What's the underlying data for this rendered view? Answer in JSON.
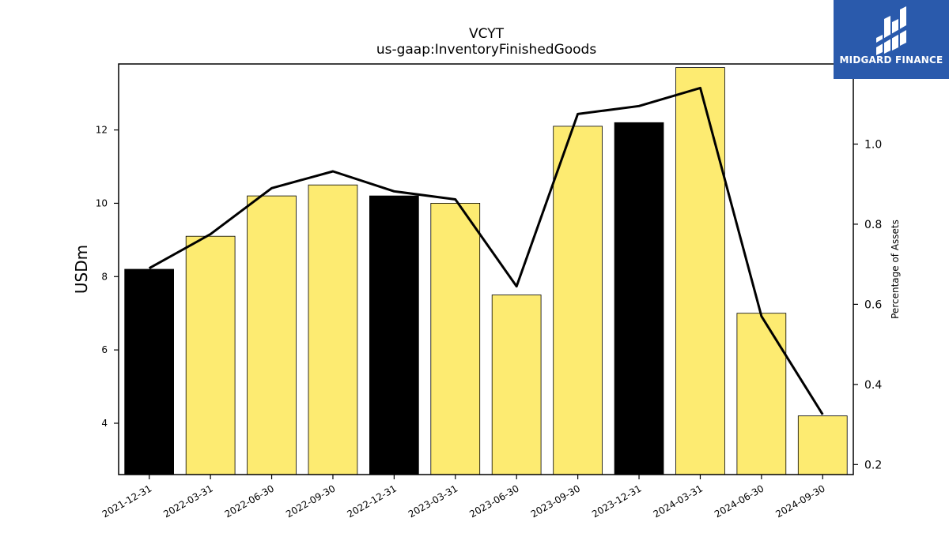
{
  "chart_data": {
    "type": "bar",
    "title": "VCYT",
    "subtitle": "us-gaap:InventoryFinishedGoods",
    "ylabel": "USDm",
    "y2label": "Percentage of Assets",
    "categories": [
      "2021-12-31",
      "2022-03-31",
      "2022-06-30",
      "2022-09-30",
      "2022-12-31",
      "2023-03-31",
      "2023-06-30",
      "2023-09-30",
      "2023-12-31",
      "2024-03-31",
      "2024-06-30",
      "2024-09-30"
    ],
    "values": [
      8.2,
      9.1,
      10.2,
      10.5,
      10.2,
      10.0,
      7.5,
      12.1,
      12.2,
      13.7,
      7.0,
      4.2
    ],
    "bar_colors": [
      "#000000",
      "#fdeb71",
      "#fdeb71",
      "#fdeb71",
      "#000000",
      "#fdeb71",
      "#fdeb71",
      "#fdeb71",
      "#000000",
      "#fdeb71",
      "#fdeb71",
      "#fdeb71"
    ],
    "line_values": [
      0.69,
      0.775,
      0.89,
      0.932,
      0.882,
      0.862,
      0.645,
      1.075,
      1.095,
      1.14,
      0.57,
      0.325
    ],
    "ylim": [
      2.6,
      13.8
    ],
    "y2lim": [
      0.175,
      1.2
    ],
    "yticks": [
      4,
      6,
      8,
      10,
      12
    ],
    "y2ticks": [
      "0.2",
      "0.4",
      "0.6",
      "0.8",
      "1.0"
    ],
    "grid": false,
    "line_color": "#000000"
  },
  "logo": {
    "text": "MIDGARD FINANCE",
    "color": "#2a5aac"
  }
}
